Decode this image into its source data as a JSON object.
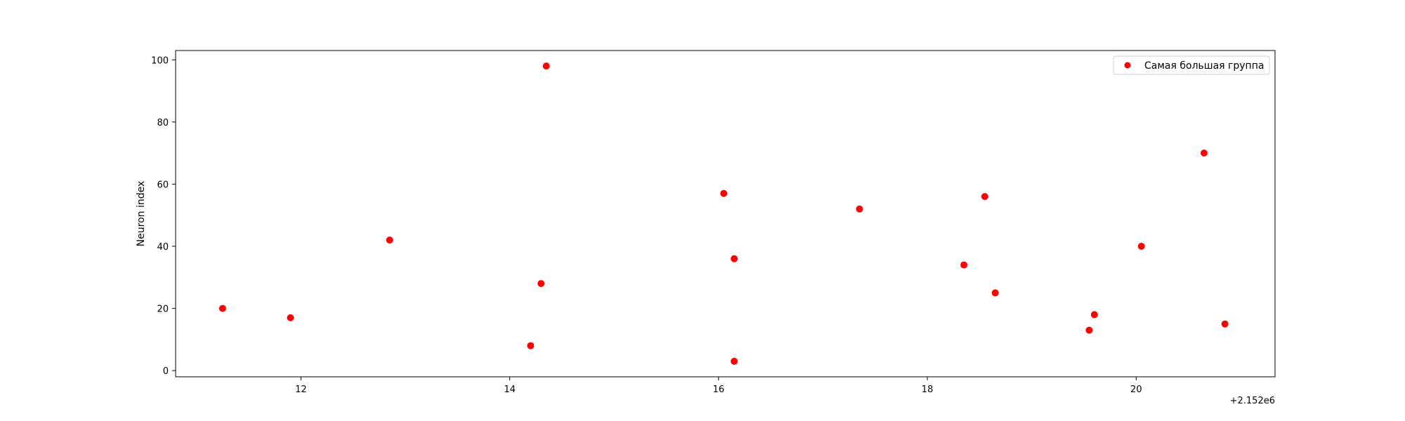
{
  "chart_data": {
    "type": "scatter",
    "title": "",
    "xlabel": "",
    "ylabel": "Neuron index",
    "x_offset_label": "+2.152e6",
    "xlim": [
      10.8,
      21.33
    ],
    "ylim": [
      -2,
      103
    ],
    "x_ticks": [
      12,
      14,
      16,
      18,
      20
    ],
    "y_ticks": [
      0,
      20,
      40,
      60,
      80,
      100
    ],
    "grid": false,
    "legend_position": "top-right",
    "series": [
      {
        "name": "Самая большая группа",
        "color": "#ff0000",
        "points": [
          {
            "x": 11.25,
            "y": 20
          },
          {
            "x": 11.9,
            "y": 17
          },
          {
            "x": 12.85,
            "y": 42
          },
          {
            "x": 14.2,
            "y": 8
          },
          {
            "x": 14.3,
            "y": 28
          },
          {
            "x": 14.35,
            "y": 98
          },
          {
            "x": 16.05,
            "y": 57
          },
          {
            "x": 16.15,
            "y": 36
          },
          {
            "x": 16.15,
            "y": 3
          },
          {
            "x": 17.35,
            "y": 52
          },
          {
            "x": 18.35,
            "y": 34
          },
          {
            "x": 18.55,
            "y": 56
          },
          {
            "x": 18.65,
            "y": 25
          },
          {
            "x": 19.55,
            "y": 13
          },
          {
            "x": 19.6,
            "y": 18
          },
          {
            "x": 20.05,
            "y": 40
          },
          {
            "x": 20.65,
            "y": 70
          },
          {
            "x": 20.85,
            "y": 15
          }
        ]
      }
    ]
  }
}
